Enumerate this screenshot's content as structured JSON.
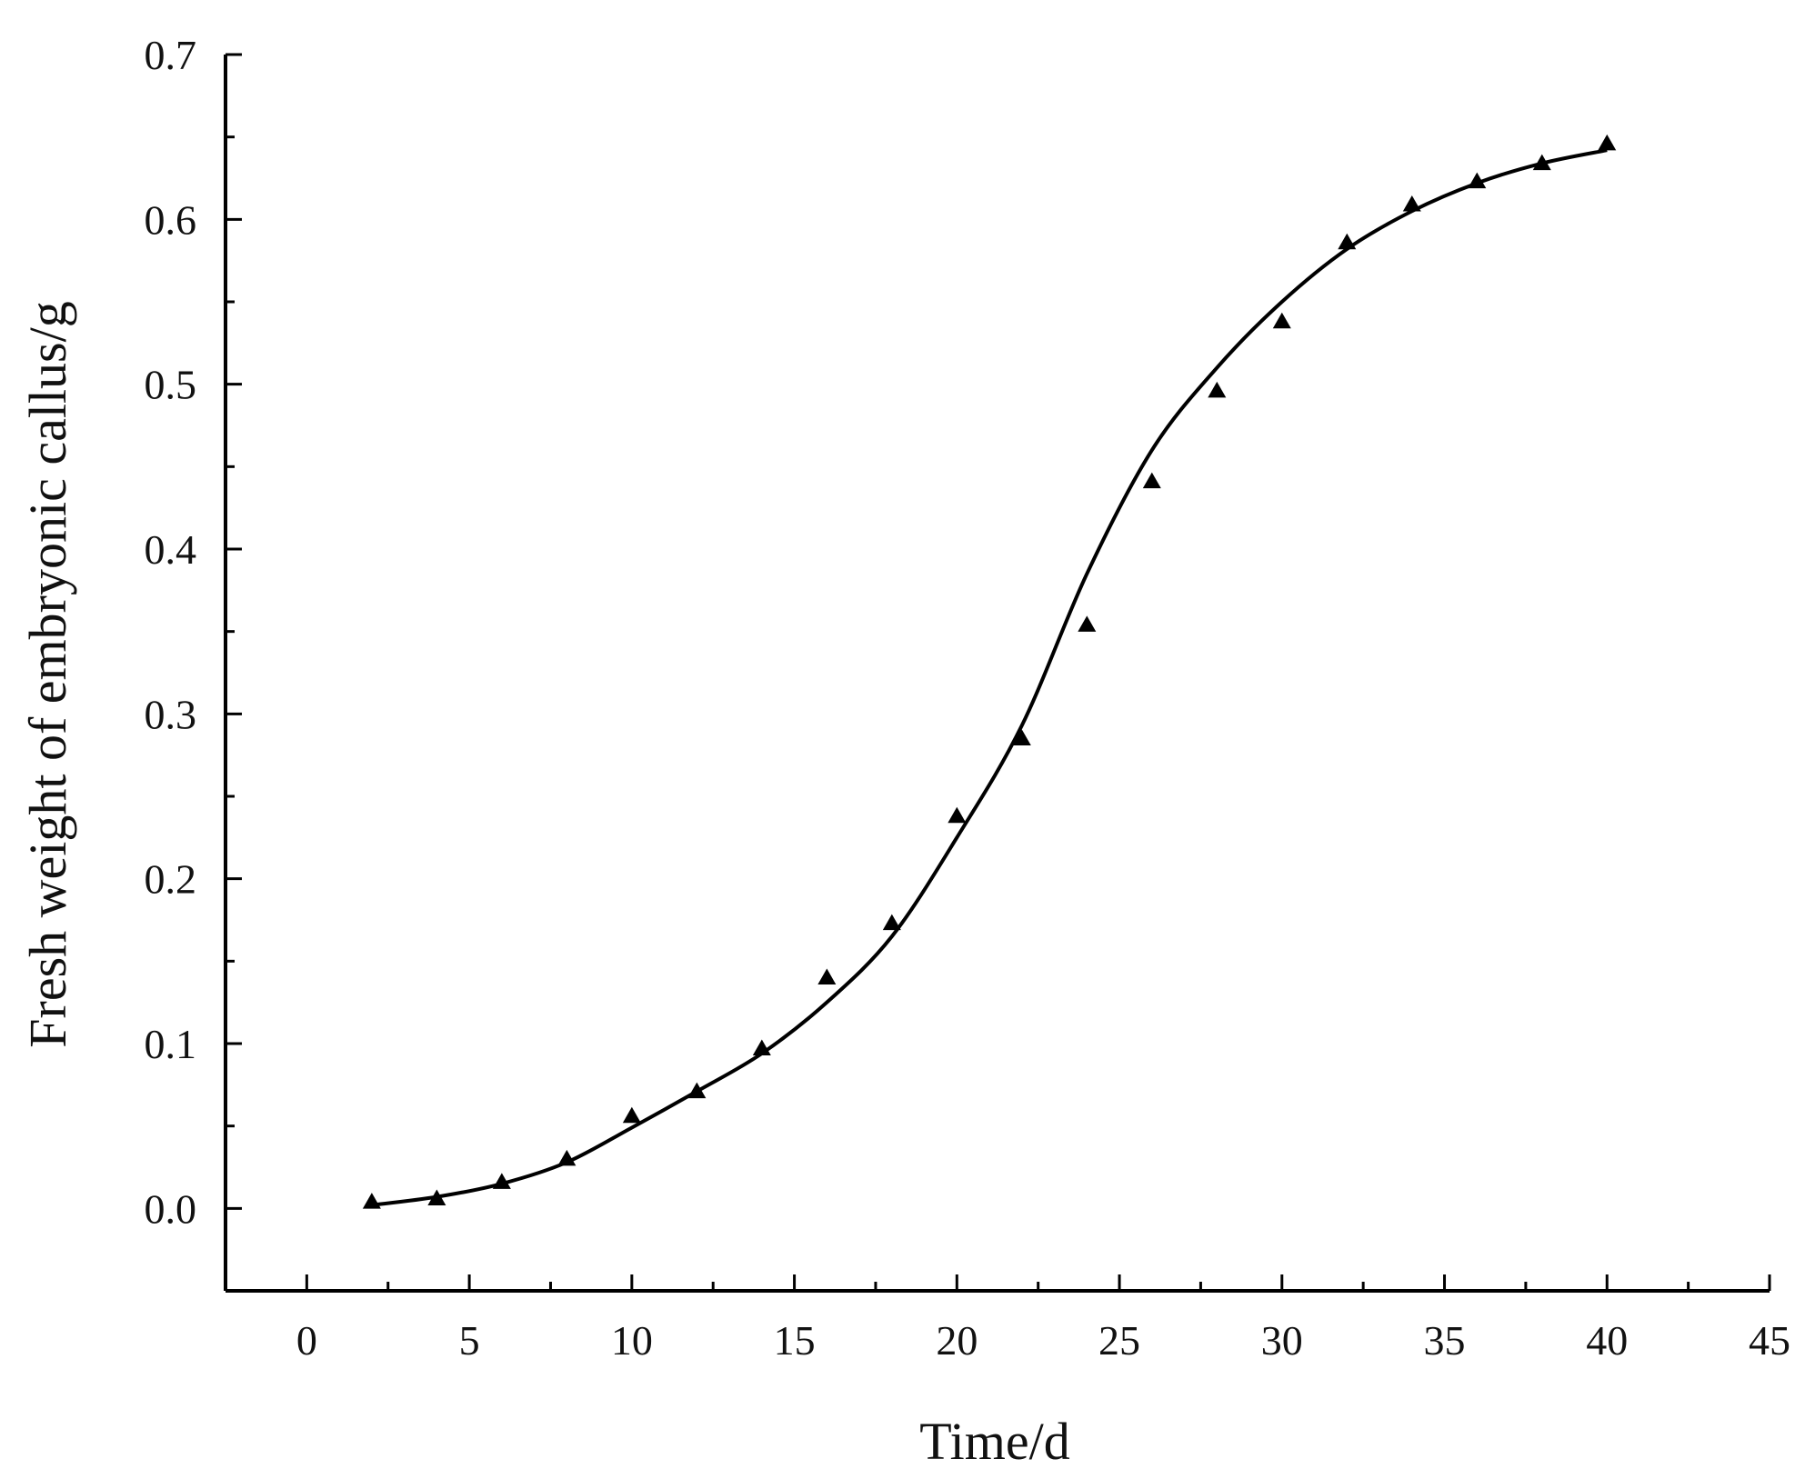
{
  "chart_data": {
    "type": "scatter",
    "title": "",
    "xlabel": "Time/d",
    "ylabel": "Fresh weight of embryonic callus/g",
    "xlim": [
      -2.5,
      45
    ],
    "ylim": [
      -0.05,
      0.7
    ],
    "x_ticks": [
      "0",
      "5",
      "10",
      "15",
      "20",
      "25",
      "30",
      "35",
      "40",
      "45"
    ],
    "y_ticks": [
      "0.0",
      "0.1",
      "0.2",
      "0.3",
      "0.4",
      "0.5",
      "0.6",
      "0.7"
    ],
    "grid": false,
    "legend": "none",
    "marker": "triangle-up",
    "color": "#000000",
    "series": [
      {
        "name": "",
        "x": [
          2,
          4,
          6,
          8,
          10,
          12,
          14,
          16,
          18,
          20,
          22,
          24,
          26,
          28,
          30,
          32,
          34,
          36,
          38,
          40
        ],
        "y": [
          0.004,
          0.006,
          0.016,
          0.03,
          0.056,
          0.071,
          0.097,
          0.14,
          0.173,
          0.238,
          0.285,
          0.354,
          0.441,
          0.496,
          0.538,
          0.586,
          0.609,
          0.623,
          0.634,
          0.646
        ]
      }
    ],
    "fit_curve": {
      "type": "sigmoid",
      "x": [
        2,
        4,
        6,
        8,
        10,
        12,
        14,
        16,
        18,
        20,
        22,
        24,
        26,
        28,
        30,
        32,
        34,
        36,
        38,
        40
      ],
      "y": [
        0.002,
        0.007,
        0.015,
        0.028,
        0.049,
        0.071,
        0.094,
        0.125,
        0.165,
        0.225,
        0.293,
        0.385,
        0.46,
        0.51,
        0.55,
        0.582,
        0.605,
        0.622,
        0.634,
        0.642
      ]
    }
  }
}
